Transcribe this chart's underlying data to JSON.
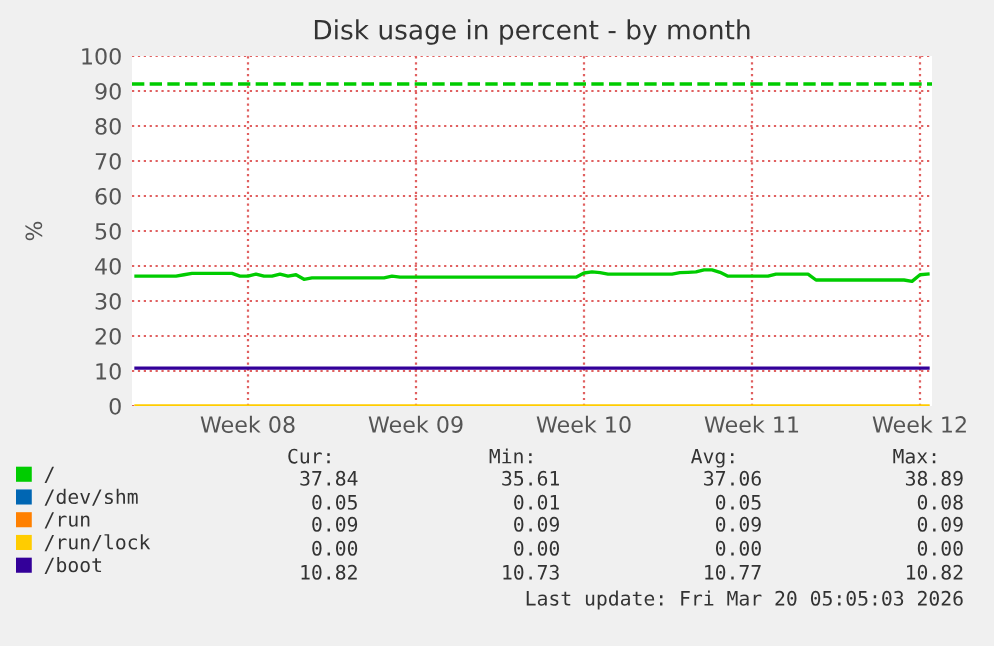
{
  "chart_data": {
    "type": "line",
    "title": "Disk usage in percent - by month",
    "ylabel": "%",
    "categories": [
      null,
      null,
      null,
      null,
      null,
      null,
      null,
      null,
      null,
      null,
      null,
      null,
      null,
      null,
      "Week 08",
      null,
      null,
      null,
      null,
      null,
      null,
      null,
      null,
      null,
      null,
      null,
      null,
      null,
      null,
      null,
      null,
      null,
      null,
      null,
      null,
      "Week 09",
      null,
      null,
      null,
      null,
      null,
      null,
      null,
      null,
      null,
      null,
      null,
      null,
      null,
      null,
      null,
      null,
      null,
      null,
      null,
      null,
      "Week 10",
      null,
      null,
      null,
      null,
      null,
      null,
      null,
      null,
      null,
      null,
      null,
      null,
      null,
      null,
      null,
      null,
      null,
      null,
      null,
      null,
      "Week 11",
      null,
      null,
      null,
      null,
      null,
      null,
      null,
      null,
      null,
      null,
      null,
      null,
      null,
      null,
      null,
      null,
      null,
      null,
      null,
      null,
      "Week 12",
      null
    ],
    "ylim": [
      0,
      100
    ],
    "yticks": [
      0,
      10,
      20,
      30,
      40,
      50,
      60,
      70,
      80,
      90,
      100
    ],
    "grid": true,
    "legend": "bottom",
    "marker": "none",
    "line_style": "solid",
    "series": [
      {
        "name": "/",
        "color": "#00cc00",
        "values": [
          37.1,
          37.1,
          37.1,
          37.1,
          37.1,
          37.1,
          37.5,
          37.9,
          37.9,
          37.9,
          37.9,
          37.9,
          37.9,
          37.1,
          37.1,
          37.7,
          37.1,
          37.1,
          37.7,
          37.1,
          37.5,
          36.2,
          36.6,
          36.6,
          36.6,
          36.6,
          36.6,
          36.6,
          36.6,
          36.6,
          36.6,
          36.6,
          37.1,
          36.8,
          36.8,
          36.8,
          36.8,
          36.8,
          36.8,
          36.8,
          36.8,
          36.8,
          36.8,
          36.8,
          36.8,
          36.8,
          36.8,
          36.8,
          36.8,
          36.8,
          36.8,
          36.8,
          36.8,
          36.8,
          36.8,
          36.8,
          38.0,
          38.3,
          38.1,
          37.7,
          37.7,
          37.7,
          37.7,
          37.7,
          37.7,
          37.7,
          37.7,
          37.7,
          38.1,
          38.2,
          38.3,
          38.9,
          38.9,
          38.2,
          37.1,
          37.1,
          37.1,
          37.1,
          37.1,
          37.1,
          37.7,
          37.7,
          37.7,
          37.7,
          37.7,
          36.0,
          36.0,
          36.0,
          36.0,
          36.0,
          36.0,
          36.0,
          36.0,
          36.0,
          36.0,
          36.0,
          36.0,
          35.6,
          37.5,
          37.7
        ]
      },
      {
        "name": "/dev/shm",
        "color": "#0066b3",
        "values": [
          null,
          null,
          null,
          null,
          null,
          null,
          null,
          null,
          null,
          null,
          null,
          null,
          null,
          null,
          null,
          null,
          null,
          null,
          null,
          null,
          null,
          null,
          null,
          null,
          null,
          null,
          null,
          null,
          null,
          null,
          null,
          null,
          null,
          null,
          null,
          null,
          null,
          null,
          null,
          null,
          null,
          null,
          null,
          null,
          null,
          null,
          null,
          null,
          null,
          null,
          null,
          null,
          null,
          null,
          null,
          null,
          null,
          null,
          null,
          null,
          null,
          null,
          null,
          null,
          null,
          null,
          null,
          null,
          null,
          null,
          null,
          null,
          null,
          null,
          null,
          null,
          null,
          null,
          null,
          null,
          null,
          null,
          null,
          null,
          null,
          null,
          null,
          null,
          null,
          null,
          null,
          null,
          null,
          null,
          null,
          null,
          null,
          null,
          null,
          null
        ]
      },
      {
        "name": "/run",
        "color": "#ff8000",
        "values": [
          null,
          null,
          null,
          null,
          null,
          null,
          null,
          null,
          null,
          null,
          null,
          null,
          null,
          null,
          null,
          null,
          null,
          null,
          null,
          null,
          null,
          null,
          null,
          null,
          null,
          null,
          null,
          null,
          null,
          null,
          null,
          null,
          null,
          null,
          null,
          null,
          null,
          null,
          null,
          null,
          null,
          null,
          null,
          null,
          null,
          null,
          null,
          null,
          null,
          null,
          null,
          null,
          null,
          null,
          null,
          null,
          null,
          null,
          null,
          null,
          null,
          null,
          null,
          null,
          null,
          null,
          null,
          null,
          null,
          null,
          null,
          null,
          null,
          null,
          null,
          null,
          null,
          null,
          null,
          null,
          null,
          null,
          null,
          null,
          null,
          null,
          null,
          null,
          null,
          null,
          null,
          null,
          null,
          null,
          null,
          null,
          null,
          null,
          null,
          null
        ]
      },
      {
        "name": "/run/lock",
        "color": "#ffcc00",
        "values": [
          0,
          0,
          0,
          0,
          0,
          0,
          0,
          0,
          0,
          0,
          0,
          0,
          0,
          0,
          0,
          0,
          0,
          0,
          0,
          0,
          0,
          0,
          0,
          0,
          0,
          0,
          0,
          0,
          0,
          0,
          0,
          0,
          0,
          0,
          0,
          0,
          0,
          0,
          0,
          0,
          0,
          0,
          0,
          0,
          0,
          0,
          0,
          0,
          0,
          0,
          0,
          0,
          0,
          0,
          0,
          0,
          0,
          0,
          0,
          0,
          0,
          0,
          0,
          0,
          0,
          0,
          0,
          0,
          0,
          0,
          0,
          0,
          0,
          0,
          0,
          0,
          0,
          0,
          0,
          0,
          0,
          0,
          0,
          0,
          0,
          0,
          0,
          0,
          0,
          0,
          0,
          0,
          0,
          0,
          0,
          0,
          0,
          0,
          0,
          0
        ]
      },
      {
        "name": "/boot",
        "color": "#330099",
        "values": [
          10.8,
          10.8,
          10.8,
          10.8,
          10.8,
          10.8,
          10.8,
          10.8,
          10.8,
          10.8,
          10.8,
          10.8,
          10.8,
          10.8,
          10.8,
          10.8,
          10.8,
          10.8,
          10.8,
          10.8,
          10.8,
          10.8,
          10.8,
          10.8,
          10.8,
          10.8,
          10.8,
          10.8,
          10.8,
          10.8,
          10.8,
          10.8,
          10.8,
          10.8,
          10.8,
          10.8,
          10.8,
          10.8,
          10.8,
          10.8,
          10.8,
          10.8,
          10.8,
          10.8,
          10.8,
          10.8,
          10.8,
          10.8,
          10.8,
          10.8,
          10.8,
          10.8,
          10.8,
          10.8,
          10.8,
          10.8,
          10.8,
          10.8,
          10.8,
          10.8,
          10.8,
          10.8,
          10.8,
          10.8,
          10.8,
          10.8,
          10.8,
          10.8,
          10.8,
          10.8,
          10.8,
          10.8,
          10.8,
          10.8,
          10.8,
          10.8,
          10.8,
          10.8,
          10.8,
          10.8,
          10.8,
          10.8,
          10.8,
          10.8,
          10.8,
          10.8,
          10.8,
          10.8,
          10.8,
          10.8,
          10.8,
          10.8,
          10.8,
          10.8,
          10.8,
          10.8,
          10.8,
          10.8,
          10.8,
          10.8
        ]
      }
    ],
    "ref_lines": [
      {
        "axis": "y",
        "value": 92,
        "color": "#00cc00",
        "line_style": "dashed"
      }
    ],
    "annotations": [
      "Cur:             Min:             Avg:             Max:",
      "37.84            35.61            37.06            38.89",
      " 0.05             0.01             0.05             0.08",
      " 0.09             0.09             0.09             0.09",
      " 0.00             0.00             0.00             0.00",
      "10.82            10.73            10.77            10.82",
      "Last update: Fri Mar 20 05:05:03 2026"
    ]
  }
}
